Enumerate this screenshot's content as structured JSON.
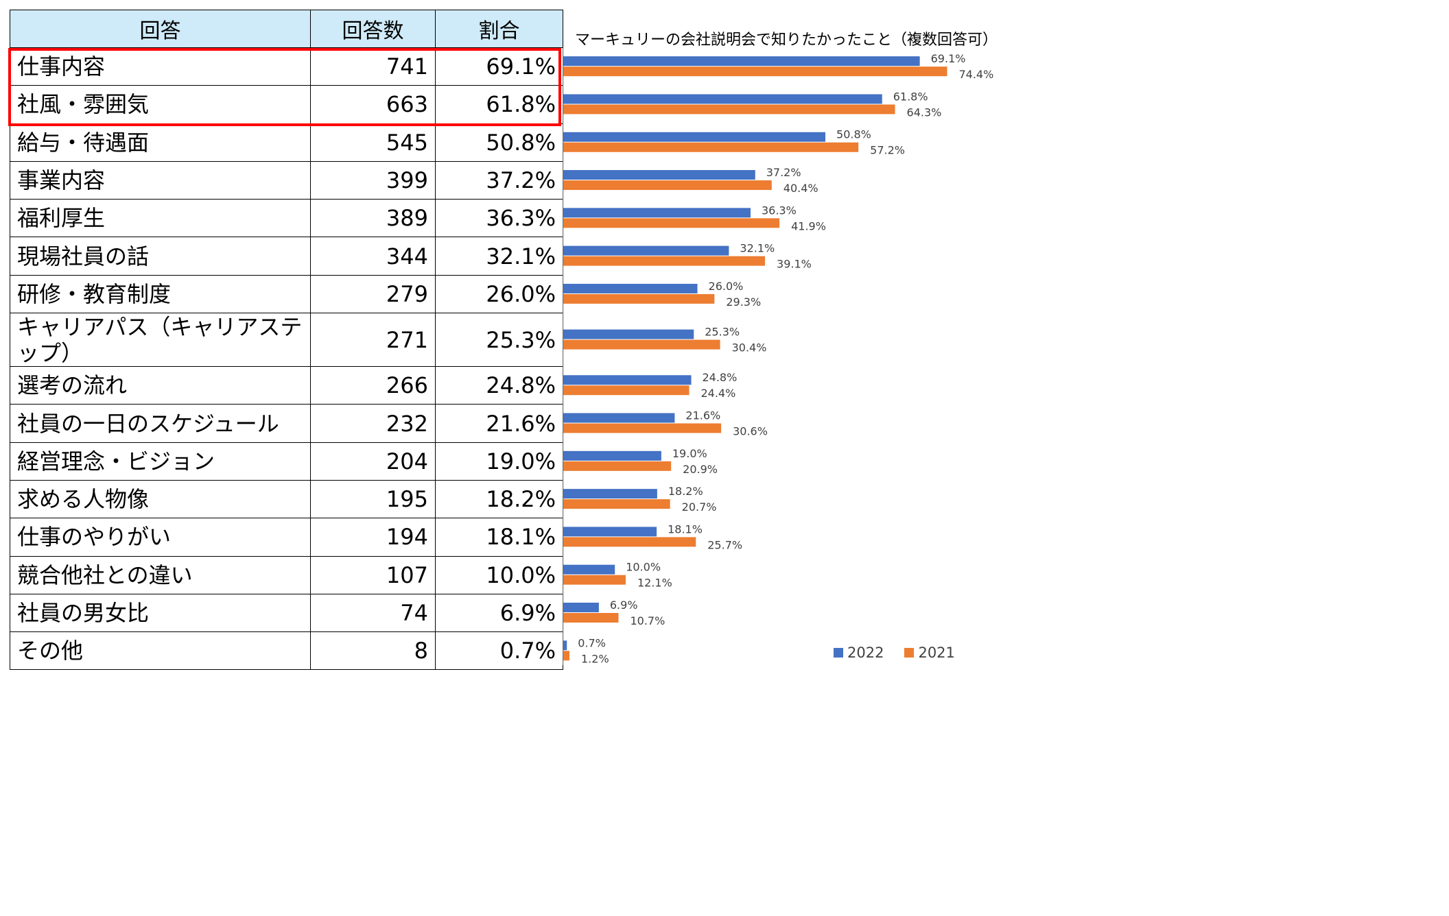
{
  "table": {
    "headers": [
      "回答",
      "回答数",
      "割合"
    ],
    "rows": [
      {
        "answer": "仕事内容",
        "count": "741",
        "pct": "69.1%"
      },
      {
        "answer": "社風・雰囲気",
        "count": "663",
        "pct": "61.8%"
      },
      {
        "answer": "給与・待遇面",
        "count": "545",
        "pct": "50.8%"
      },
      {
        "answer": "事業内容",
        "count": "399",
        "pct": "37.2%"
      },
      {
        "answer": "福利厚生",
        "count": "389",
        "pct": "36.3%"
      },
      {
        "answer": "現場社員の話",
        "count": "344",
        "pct": "32.1%"
      },
      {
        "answer": "研修・教育制度",
        "count": "279",
        "pct": "26.0%"
      },
      {
        "answer": "キャリアパス（キャリアステップ）",
        "count": "271",
        "pct": "25.3%"
      },
      {
        "answer": "選考の流れ",
        "count": "266",
        "pct": "24.8%"
      },
      {
        "answer": "社員の一日のスケジュール",
        "count": "232",
        "pct": "21.6%"
      },
      {
        "answer": "経営理念・ビジョン",
        "count": "204",
        "pct": "19.0%"
      },
      {
        "answer": "求める人物像",
        "count": "195",
        "pct": "18.2%"
      },
      {
        "answer": "仕事のやりがい",
        "count": "194",
        "pct": "18.1%"
      },
      {
        "answer": "競合他社との違い",
        "count": "107",
        "pct": "10.0%"
      },
      {
        "answer": "社員の男女比",
        "count": "74",
        "pct": "6.9%"
      },
      {
        "answer": "その他",
        "count": "8",
        "pct": "0.7%"
      }
    ]
  },
  "chart_data": {
    "type": "bar",
    "orientation": "horizontal",
    "title": "マーキュリーの会社説明会で知りたかったこと（複数回答可）",
    "categories": [
      "仕事内容",
      "社風・雰囲気",
      "給与・待遇面",
      "事業内容",
      "福利厚生",
      "現場社員の話",
      "研修・教育制度",
      "キャリアパス（キャリアステップ）",
      "選考の流れ",
      "社員の一日のスケジュール",
      "経営理念・ビジョン",
      "求める人物像",
      "仕事のやりがい",
      "競合他社との違い",
      "社員の男女比",
      "その他"
    ],
    "series": [
      {
        "name": "2022",
        "color": "#4472c4",
        "values": [
          69.1,
          61.8,
          50.8,
          37.2,
          36.3,
          32.1,
          26.0,
          25.3,
          24.8,
          21.6,
          19.0,
          18.2,
          18.1,
          10.0,
          6.9,
          0.7
        ]
      },
      {
        "name": "2021",
        "color": "#ed7d31",
        "values": [
          74.4,
          64.3,
          57.2,
          40.4,
          41.9,
          39.1,
          29.3,
          30.4,
          24.4,
          30.6,
          20.9,
          20.7,
          25.7,
          12.1,
          10.7,
          1.2
        ]
      }
    ],
    "data_label_suffix": "%",
    "legend": "bottom-right",
    "grid": false
  },
  "colors": {
    "highlight": "#ff0000",
    "header_bg": "#cfeaf8"
  }
}
